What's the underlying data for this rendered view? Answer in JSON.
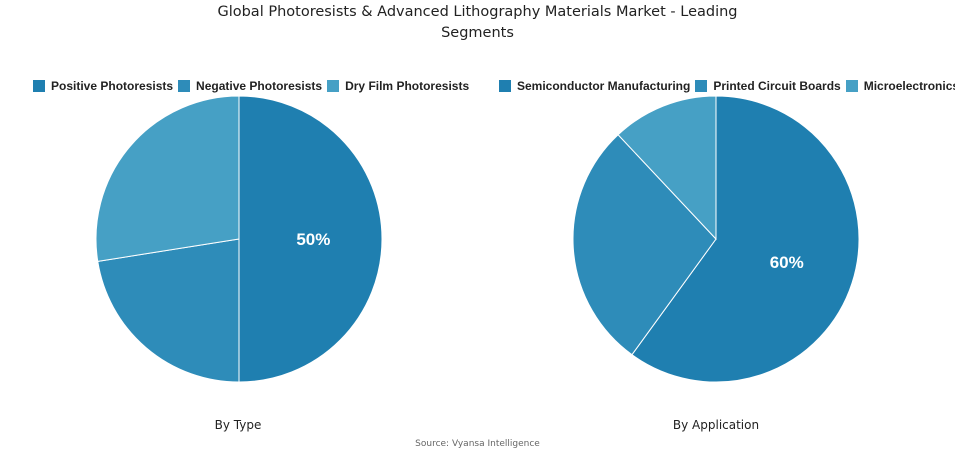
{
  "title_line1": "Global Photoresists & Advanced Lithography Materials Market - Leading",
  "title_line2": "Segments",
  "source": "Source: Vyansa Intelligence",
  "colors": {
    "dark": "#1f7fb0",
    "mid": "#2e8cb9",
    "light": "#46a0c5"
  },
  "chart_data": [
    {
      "type": "pie",
      "title": "By Type",
      "legend_position": "top",
      "categories": [
        "Positive Photoresists",
        "Negative Photoresists",
        "Dry Film Photoresists"
      ],
      "values": [
        50,
        22.5,
        27.5
      ],
      "colors": [
        "#1f7fb0",
        "#2e8cb9",
        "#46a0c5"
      ],
      "labels_shown": [
        "50%",
        "",
        ""
      ]
    },
    {
      "type": "pie",
      "title": "By Application",
      "legend_position": "top",
      "categories": [
        "Semiconductor Manufacturing",
        "Printed Circuit Boards",
        "Microelectronics"
      ],
      "values": [
        60,
        28,
        12
      ],
      "colors": [
        "#1f7fb0",
        "#2e8cb9",
        "#46a0c5"
      ],
      "labels_shown": [
        "60%",
        "",
        ""
      ]
    }
  ]
}
